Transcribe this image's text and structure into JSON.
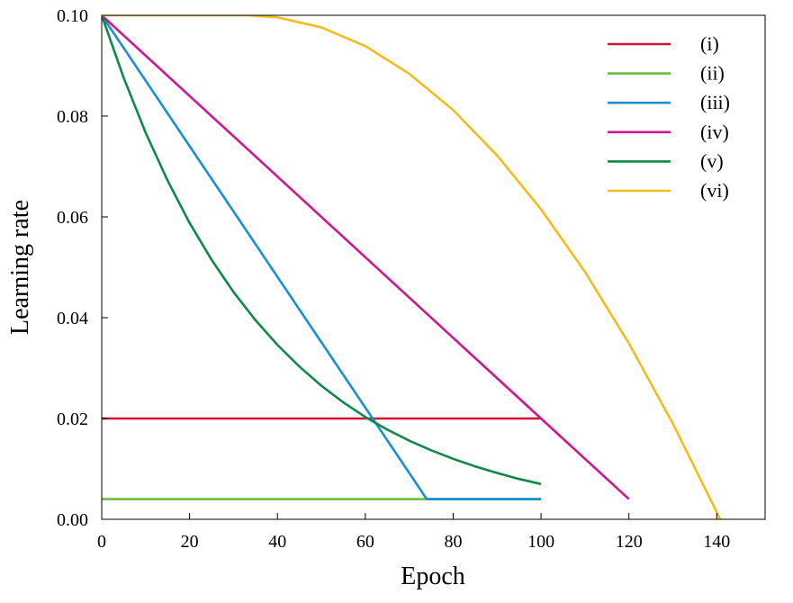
{
  "chart_data": {
    "type": "line",
    "title": "",
    "xlabel": "Epoch",
    "ylabel": "Learning rate",
    "xlim": [
      0,
      151
    ],
    "ylim": [
      0,
      0.1
    ],
    "x_ticks": [
      0,
      20,
      40,
      60,
      80,
      100,
      120,
      140
    ],
    "x_tick_labels": [
      "0",
      "20",
      "40",
      "60",
      "80",
      "100",
      "120",
      "140"
    ],
    "y_ticks": [
      0,
      0.02,
      0.04,
      0.06,
      0.08,
      0.1
    ],
    "y_tick_labels": [
      "0.00",
      "0.02",
      "0.04",
      "0.06",
      "0.08",
      "0.10"
    ],
    "grid": false,
    "legend_position": "top-right",
    "series": [
      {
        "name": "(i)",
        "color": "#cc1733",
        "x": [
          0,
          100
        ],
        "y": [
          0.02,
          0.02
        ]
      },
      {
        "name": "(ii)",
        "color": "#6abf3c",
        "x": [
          0,
          100
        ],
        "y": [
          0.004,
          0.004
        ]
      },
      {
        "name": "(iii)",
        "color": "#1a8fd1",
        "x": [
          0,
          74,
          100
        ],
        "y": [
          0.1,
          0.004,
          0.004
        ]
      },
      {
        "name": "(iv)",
        "color": "#d1158f",
        "x": [
          0,
          120
        ],
        "y": [
          0.1,
          0.004
        ]
      },
      {
        "name": "(v)",
        "color": "#0e8a48",
        "x": [
          0,
          5,
          10,
          15,
          20,
          25,
          30,
          35,
          40,
          45,
          50,
          55,
          60,
          65,
          70,
          75,
          80,
          85,
          90,
          95,
          100
        ],
        "y": [
          0.1,
          0.0876,
          0.0767,
          0.0672,
          0.0588,
          0.0515,
          0.0451,
          0.0395,
          0.0346,
          0.0303,
          0.0265,
          0.0232,
          0.0203,
          0.0178,
          0.0156,
          0.0137,
          0.012,
          0.0105,
          0.0092,
          0.008,
          0.007
        ]
      },
      {
        "name": "(vi)",
        "color": "#f2bd1a",
        "x": [
          0,
          33,
          40,
          50,
          60,
          70,
          80,
          90,
          100,
          110,
          120,
          130,
          140,
          147
        ],
        "y": [
          0.1,
          0.1,
          0.0996,
          0.0976,
          0.0939,
          0.0884,
          0.0812,
          0.0722,
          0.0615,
          0.0491,
          0.0349,
          0.019,
          0.0014,
          -0.0112
        ]
      }
    ]
  }
}
